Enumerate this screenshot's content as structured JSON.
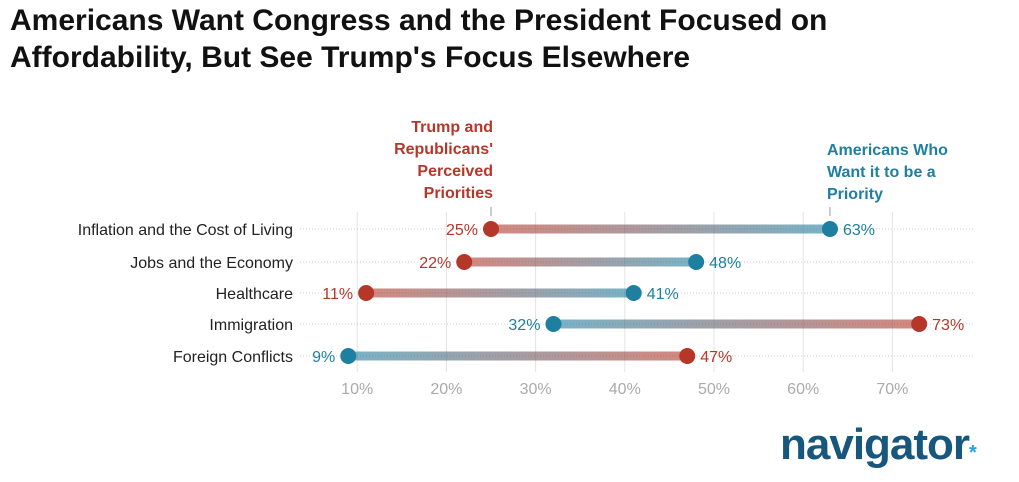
{
  "title": "Americans Want Congress and the President Focused on Affordability, But See Trump's Focus Elsewhere",
  "logo": {
    "text": "navigator",
    "mark": "*"
  },
  "colors": {
    "trump": "#b5372a",
    "americans": "#1e7fa0"
  },
  "chart_data": {
    "type": "dumbbell",
    "categories": [
      "Inflation and the Cost of Living",
      "Jobs and the Economy",
      "Healthcare",
      "Immigration",
      "Foreign Conflicts"
    ],
    "series": [
      {
        "name": "Trump and Republicans' Perceived Priorities",
        "legend_lines": [
          "Trump and",
          "Republicans'",
          "Perceived",
          "Priorities"
        ],
        "values": [
          25,
          22,
          11,
          73,
          47
        ]
      },
      {
        "name": "Americans Who Want it to be a Priority",
        "legend_lines": [
          "Americans Who",
          "Want it to be a",
          "Priority"
        ],
        "values": [
          63,
          48,
          41,
          32,
          9
        ]
      }
    ],
    "xticks": [
      "10%",
      "20%",
      "30%",
      "40%",
      "50%",
      "60%",
      "70%"
    ],
    "xtick_values": [
      10,
      20,
      30,
      40,
      50,
      60,
      70
    ],
    "xlim": [
      0,
      80
    ],
    "unit": "%"
  }
}
